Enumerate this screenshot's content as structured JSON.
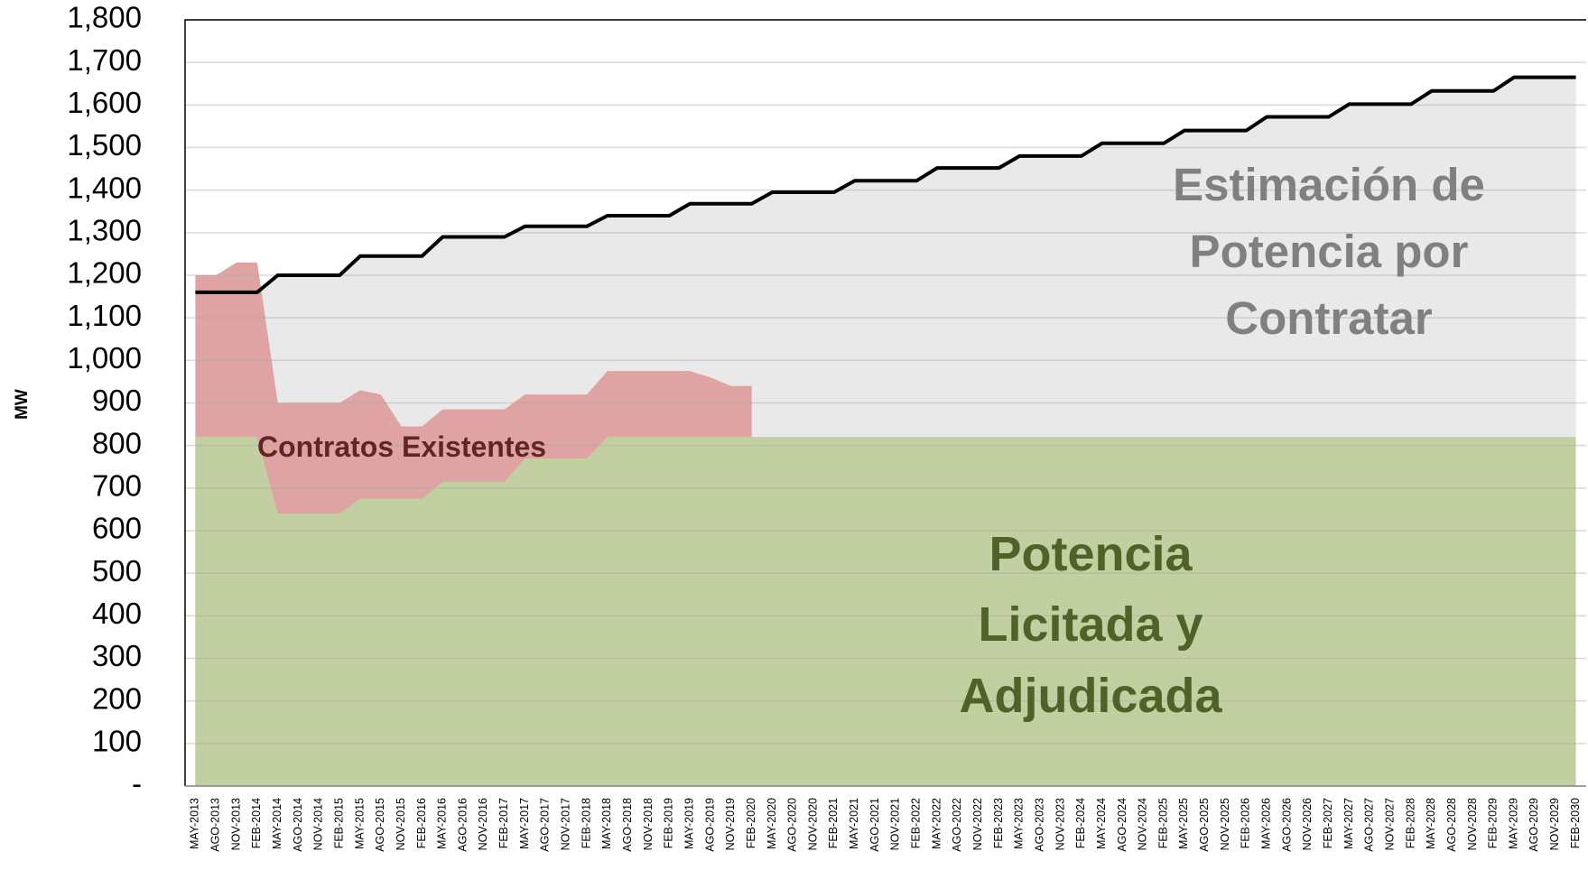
{
  "chart_data": {
    "type": "area",
    "ylabel": "MW",
    "categories": [
      "MAY-2013",
      "AGO-2013",
      "NOV-2013",
      "FEB-2014",
      "MAY-2014",
      "AGO-2014",
      "NOV-2014",
      "FEB-2015",
      "MAY-2015",
      "AGO-2015",
      "NOV-2015",
      "FEB-2016",
      "MAY-2016",
      "AGO-2016",
      "NOV-2016",
      "FEB-2017",
      "MAY-2017",
      "AGO-2017",
      "NOV-2017",
      "FEB-2018",
      "MAY-2018",
      "AGO-2018",
      "NOV-2018",
      "FEB-2019",
      "MAY-2019",
      "AGO-2019",
      "NOV-2019",
      "FEB-2020",
      "MAY-2020",
      "AGO-2020",
      "NOV-2020",
      "FEB-2021",
      "MAY-2021",
      "AGO-2021",
      "NOV-2021",
      "FEB-2022",
      "MAY-2022",
      "AGO-2022",
      "NOV-2022",
      "FEB-2023",
      "MAY-2023",
      "AGO-2023",
      "NOV-2023",
      "FEB-2024",
      "MAY-2024",
      "AGO-2024",
      "NOV-2024",
      "FEB-2025",
      "MAY-2025",
      "AGO-2025",
      "NOV-2025",
      "FEB-2026",
      "MAY-2026",
      "AGO-2026",
      "NOV-2026",
      "FEB-2027",
      "MAY-2027",
      "AGO-2027",
      "NOV-2027",
      "FEB-2028",
      "MAY-2028",
      "AGO-2028",
      "NOV-2028",
      "FEB-2029",
      "MAY-2029",
      "AGO-2029",
      "NOV-2029",
      "FEB-2030"
    ],
    "series": [
      {
        "name": "Estimación de Potencia por Contratar",
        "color": "#e9e9e9",
        "line_color": "#000000",
        "label_color": "#808080",
        "values": [
          1160,
          1160,
          1160,
          1160,
          1200,
          1200,
          1200,
          1200,
          1245,
          1245,
          1245,
          1245,
          1290,
          1290,
          1290,
          1290,
          1315,
          1315,
          1315,
          1315,
          1340,
          1340,
          1340,
          1340,
          1368,
          1368,
          1368,
          1368,
          1395,
          1395,
          1395,
          1395,
          1422,
          1422,
          1422,
          1422,
          1452,
          1452,
          1452,
          1452,
          1480,
          1480,
          1480,
          1480,
          1510,
          1510,
          1510,
          1510,
          1540,
          1540,
          1540,
          1540,
          1572,
          1572,
          1572,
          1572,
          1602,
          1602,
          1602,
          1602,
          1633,
          1633,
          1633,
          1633,
          1665,
          1665,
          1665,
          1665
        ]
      },
      {
        "name": "Contratos Existentes",
        "color": "#dea3a2",
        "label_color": "#632523",
        "values": [
          1200,
          1200,
          1230,
          1230,
          900,
          900,
          900,
          900,
          930,
          920,
          845,
          845,
          885,
          885,
          885,
          885,
          920,
          920,
          920,
          920,
          975,
          975,
          975,
          975,
          975,
          960,
          940,
          940,
          null,
          null,
          null,
          null,
          null,
          null,
          null,
          null,
          null,
          null,
          null,
          null,
          null,
          null,
          null,
          null,
          null,
          null,
          null,
          null,
          null,
          null,
          null,
          null,
          null,
          null,
          null,
          null,
          null,
          null,
          null,
          null,
          null,
          null,
          null,
          null,
          null,
          null,
          null,
          null
        ]
      },
      {
        "name": "Potencia Licitada y Adjudicada",
        "color": "#c2cfa1",
        "label_color": "#4f6228",
        "values": [
          820,
          820,
          820,
          820,
          640,
          640,
          640,
          640,
          675,
          675,
          675,
          675,
          715,
          715,
          715,
          715,
          770,
          770,
          770,
          770,
          820,
          820,
          820,
          820,
          820,
          820,
          820,
          820,
          820,
          820,
          820,
          820,
          820,
          820,
          820,
          820,
          820,
          820,
          820,
          820,
          820,
          820,
          820,
          820,
          820,
          820,
          820,
          820,
          820,
          820,
          820,
          820,
          820,
          820,
          820,
          820,
          820,
          820,
          820,
          820,
          820,
          820,
          820,
          820,
          820,
          820,
          820,
          820
        ]
      }
    ],
    "ylim": [
      0,
      1800
    ],
    "yticks": [
      {
        "value": 0,
        "label": "-"
      },
      100,
      200,
      300,
      400,
      500,
      600,
      700,
      800,
      900,
      {
        "value": 1000,
        "label": "1,000"
      },
      {
        "value": 1100,
        "label": "1,100"
      },
      {
        "value": 1200,
        "label": "1,200"
      },
      {
        "value": 1300,
        "label": "1,300"
      },
      {
        "value": 1400,
        "label": "1,400"
      },
      {
        "value": 1500,
        "label": "1,500"
      },
      {
        "value": 1600,
        "label": "1,600"
      },
      {
        "value": 1700,
        "label": "1,700"
      },
      {
        "value": 1800,
        "label": "1,800"
      }
    ],
    "grid": true
  }
}
